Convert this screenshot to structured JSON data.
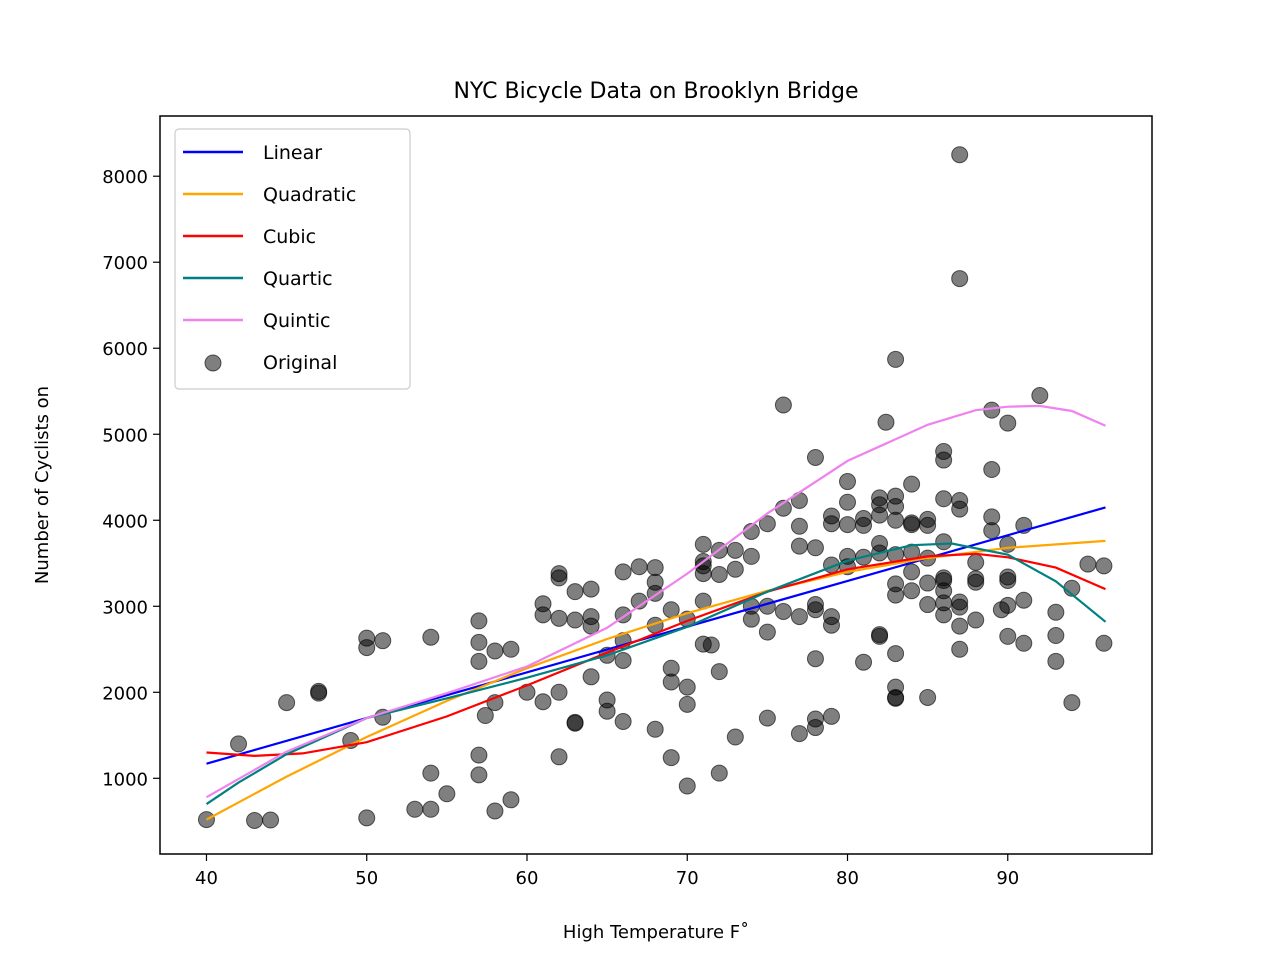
{
  "chart_data": {
    "type": "scatter",
    "title": "NYC Bicycle Data on Brooklyn Bridge",
    "xlabel": "High Temperature F˚",
    "ylabel": "Number of Cyclists on",
    "xlim": [
      37.1,
      99
    ],
    "ylim": [
      120,
      8700
    ],
    "xticks": [
      40,
      50,
      60,
      70,
      80,
      90
    ],
    "yticks": [
      1000,
      2000,
      3000,
      4000,
      5000,
      6000,
      7000,
      8000
    ],
    "legend_position": "top-left",
    "grid": false,
    "series": [
      {
        "name": "Linear",
        "kind": "line",
        "color": "#0000ff",
        "x": [
          40,
          96.1
        ],
        "y": [
          1170,
          4150
        ]
      },
      {
        "name": "Quadratic",
        "kind": "line",
        "color": "#ffa500",
        "x": [
          40,
          45,
          50,
          55,
          60,
          65,
          70,
          75,
          80,
          85,
          90,
          96.1
        ],
        "y": [
          520,
          1020,
          1480,
          1900,
          2280,
          2620,
          2920,
          3180,
          3400,
          3560,
          3680,
          3760
        ]
      },
      {
        "name": "Cubic",
        "kind": "line",
        "color": "#ff0000",
        "x": [
          40,
          43,
          46,
          50,
          55,
          60,
          65,
          70,
          75,
          80,
          85,
          88,
          90,
          93,
          96.1
        ],
        "y": [
          1300,
          1260,
          1290,
          1420,
          1720,
          2080,
          2460,
          2830,
          3170,
          3430,
          3580,
          3610,
          3570,
          3450,
          3200
        ]
      },
      {
        "name": "Quartic",
        "kind": "line",
        "color": "#008080",
        "x": [
          40,
          42,
          45,
          50,
          55,
          60,
          65,
          70,
          75,
          80,
          84,
          86.5,
          90,
          93,
          96.1
        ],
        "y": [
          700,
          950,
          1280,
          1700,
          1930,
          2170,
          2430,
          2760,
          3170,
          3530,
          3710,
          3730,
          3600,
          3290,
          2820
        ]
      },
      {
        "name": "Quintic",
        "kind": "line",
        "color": "#ee82ee",
        "x": [
          40,
          45,
          50,
          55,
          60,
          65,
          70,
          75,
          80,
          85,
          88,
          90,
          92,
          94,
          96.1
        ],
        "y": [
          780,
          1310,
          1700,
          1990,
          2300,
          2750,
          3380,
          4080,
          4690,
          5110,
          5280,
          5320,
          5330,
          5270,
          5100
        ]
      },
      {
        "name": "Original",
        "kind": "scatter",
        "color": "#000000",
        "alpha": 0.5,
        "points": [
          [
            40,
            520
          ],
          [
            42,
            1400
          ],
          [
            43,
            510
          ],
          [
            44,
            515
          ],
          [
            45,
            1880
          ],
          [
            47,
            1990
          ],
          [
            47,
            2010
          ],
          [
            49,
            1440
          ],
          [
            50,
            2630
          ],
          [
            50,
            2520
          ],
          [
            50,
            540
          ],
          [
            51,
            2600
          ],
          [
            51,
            1710
          ],
          [
            53,
            640
          ],
          [
            54,
            640
          ],
          [
            54,
            1060
          ],
          [
            54,
            2640
          ],
          [
            55,
            820
          ],
          [
            57,
            2830
          ],
          [
            57,
            2580
          ],
          [
            57,
            2360
          ],
          [
            57,
            1270
          ],
          [
            57,
            1040
          ],
          [
            57.4,
            1730
          ],
          [
            58,
            2480
          ],
          [
            58,
            1880
          ],
          [
            58,
            620
          ],
          [
            59,
            2500
          ],
          [
            59,
            750
          ],
          [
            60,
            2000
          ],
          [
            61,
            3030
          ],
          [
            61,
            2900
          ],
          [
            61,
            1890
          ],
          [
            62,
            3380
          ],
          [
            62,
            3330
          ],
          [
            62,
            2860
          ],
          [
            62,
            2000
          ],
          [
            62,
            1250
          ],
          [
            63,
            3170
          ],
          [
            63,
            2840
          ],
          [
            63,
            1640
          ],
          [
            63,
            1650
          ],
          [
            64,
            3200
          ],
          [
            64,
            2880
          ],
          [
            64,
            2770
          ],
          [
            64,
            2180
          ],
          [
            65,
            1910
          ],
          [
            65,
            1780
          ],
          [
            65,
            2430
          ],
          [
            66,
            3400
          ],
          [
            66,
            2900
          ],
          [
            66,
            2600
          ],
          [
            66,
            2370
          ],
          [
            66,
            1660
          ],
          [
            67,
            3460
          ],
          [
            67,
            3060
          ],
          [
            68,
            3450
          ],
          [
            68,
            3280
          ],
          [
            68,
            3150
          ],
          [
            68,
            2780
          ],
          [
            68,
            1570
          ],
          [
            69,
            2960
          ],
          [
            69,
            2280
          ],
          [
            69,
            2120
          ],
          [
            69,
            1240
          ],
          [
            70,
            2060
          ],
          [
            70,
            1860
          ],
          [
            70,
            910
          ],
          [
            70,
            2850
          ],
          [
            71,
            3720
          ],
          [
            71,
            3520
          ],
          [
            71,
            3470
          ],
          [
            71,
            3380
          ],
          [
            71,
            3060
          ],
          [
            71,
            2560
          ],
          [
            71.5,
            2550
          ],
          [
            72,
            3650
          ],
          [
            72,
            3370
          ],
          [
            72,
            2240
          ],
          [
            72,
            1060
          ],
          [
            73,
            3650
          ],
          [
            73,
            3430
          ],
          [
            73,
            1480
          ],
          [
            74,
            3870
          ],
          [
            74,
            3580
          ],
          [
            74,
            3000
          ],
          [
            74,
            2850
          ],
          [
            75,
            3960
          ],
          [
            75,
            3000
          ],
          [
            75,
            2700
          ],
          [
            75,
            1700
          ],
          [
            76,
            5340
          ],
          [
            76,
            4140
          ],
          [
            76,
            2940
          ],
          [
            77,
            4230
          ],
          [
            77,
            3930
          ],
          [
            77,
            3700
          ],
          [
            77,
            2880
          ],
          [
            77,
            1520
          ],
          [
            78,
            4730
          ],
          [
            78,
            3680
          ],
          [
            78,
            3020
          ],
          [
            78,
            2960
          ],
          [
            78,
            2390
          ],
          [
            78,
            1690
          ],
          [
            78,
            1590
          ],
          [
            79,
            4050
          ],
          [
            79,
            3960
          ],
          [
            79,
            3480
          ],
          [
            79,
            2880
          ],
          [
            79,
            2780
          ],
          [
            79,
            1720
          ],
          [
            80,
            4450
          ],
          [
            80,
            4210
          ],
          [
            80,
            3950
          ],
          [
            80,
            3580
          ],
          [
            80,
            3460
          ],
          [
            81,
            4020
          ],
          [
            81,
            3940
          ],
          [
            81,
            3570
          ],
          [
            81,
            2350
          ],
          [
            82,
            4260
          ],
          [
            82,
            4180
          ],
          [
            82,
            4060
          ],
          [
            82,
            3730
          ],
          [
            82,
            3620
          ],
          [
            82,
            2670
          ],
          [
            82,
            2650
          ],
          [
            82.4,
            5140
          ],
          [
            83,
            5870
          ],
          [
            83,
            4280
          ],
          [
            83,
            4160
          ],
          [
            83,
            4000
          ],
          [
            83,
            3600
          ],
          [
            83,
            3260
          ],
          [
            83,
            3130
          ],
          [
            83,
            2450
          ],
          [
            83,
            2060
          ],
          [
            83,
            1940
          ],
          [
            83,
            1930
          ],
          [
            84,
            4420
          ],
          [
            84,
            3970
          ],
          [
            84,
            3950
          ],
          [
            84,
            3630
          ],
          [
            84,
            3400
          ],
          [
            84,
            3180
          ],
          [
            85,
            4010
          ],
          [
            85,
            3940
          ],
          [
            85,
            3560
          ],
          [
            85,
            3270
          ],
          [
            85,
            3020
          ],
          [
            85,
            1940
          ],
          [
            86,
            4800
          ],
          [
            86,
            4700
          ],
          [
            86,
            4250
          ],
          [
            86,
            3750
          ],
          [
            86,
            3330
          ],
          [
            86,
            3300
          ],
          [
            86,
            3180
          ],
          [
            86,
            3040
          ],
          [
            86,
            2900
          ],
          [
            87,
            8250
          ],
          [
            87,
            6810
          ],
          [
            87,
            4230
          ],
          [
            87,
            4130
          ],
          [
            87,
            3050
          ],
          [
            87,
            2990
          ],
          [
            87,
            2770
          ],
          [
            87,
            2500
          ],
          [
            88,
            3510
          ],
          [
            88,
            3320
          ],
          [
            88,
            3280
          ],
          [
            88,
            2840
          ],
          [
            89,
            5280
          ],
          [
            89,
            4590
          ],
          [
            89,
            4040
          ],
          [
            89,
            3880
          ],
          [
            89.6,
            2960
          ],
          [
            90,
            5130
          ],
          [
            90,
            3720
          ],
          [
            90,
            3340
          ],
          [
            90,
            3300
          ],
          [
            90,
            3010
          ],
          [
            90,
            2650
          ],
          [
            91,
            3940
          ],
          [
            91,
            3070
          ],
          [
            91,
            2570
          ],
          [
            92,
            5450
          ],
          [
            93,
            2930
          ],
          [
            93,
            2660
          ],
          [
            93,
            2360
          ],
          [
            94,
            3210
          ],
          [
            94,
            1880
          ],
          [
            95,
            3490
          ],
          [
            96,
            3470
          ],
          [
            96,
            2570
          ]
        ]
      }
    ]
  }
}
